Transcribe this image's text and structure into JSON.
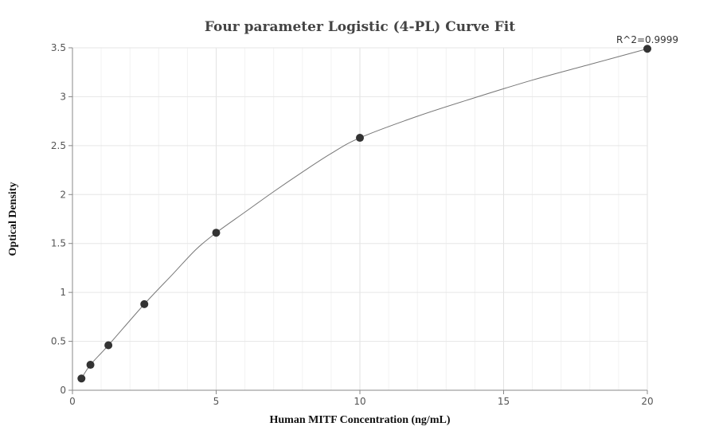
{
  "chart_data": {
    "type": "scatter",
    "title": "Four parameter Logistic (4-PL) Curve Fit",
    "xlabel": "Human MITF Concentration (ng/mL)",
    "ylabel": "Optical Density",
    "xlim": [
      0,
      20
    ],
    "ylim": [
      0,
      3.5
    ],
    "x_ticks": [
      "0",
      "5",
      "10",
      "15",
      "20"
    ],
    "y_ticks": [
      "0",
      "0.5",
      "1",
      "1.5",
      "2",
      "2.5",
      "3",
      "3.5"
    ],
    "grid": true,
    "annotation": "R^2=0.9999",
    "points": {
      "x": [
        0.3125,
        0.625,
        1.25,
        2.5,
        5,
        10,
        20
      ],
      "y": [
        0.12,
        0.26,
        0.46,
        0.88,
        1.61,
        2.58,
        3.49
      ]
    },
    "curve": {
      "x": [
        0.3125,
        0.625,
        1.25,
        2.5,
        3.5,
        4.3,
        5,
        6,
        7,
        8,
        9,
        10,
        12,
        14,
        16,
        18,
        20
      ],
      "y": [
        0.12,
        0.26,
        0.46,
        0.88,
        1.19,
        1.44,
        1.61,
        1.82,
        2.03,
        2.23,
        2.42,
        2.58,
        2.8,
        2.99,
        3.17,
        3.33,
        3.49
      ]
    },
    "colors": {
      "point": "#333333",
      "curve": "#777777",
      "grid": "#e8e8e8",
      "axis": "#888888"
    }
  }
}
